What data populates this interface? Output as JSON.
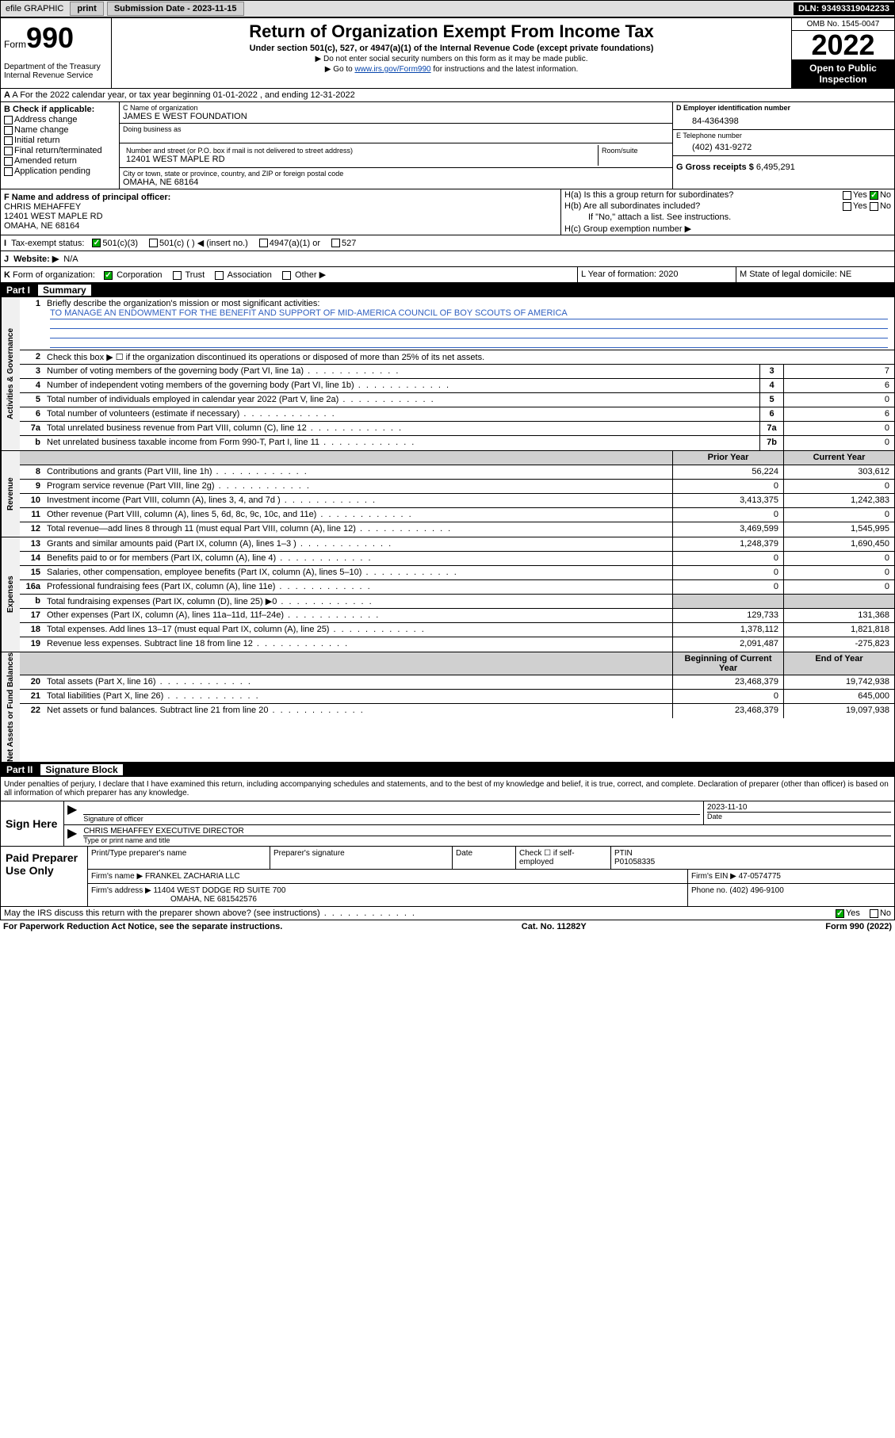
{
  "toolbar": {
    "efile": "efile GRAPHIC",
    "print": "print",
    "subm_label": "Submission Date - 2023-11-15",
    "dln": "DLN: 93493319042233"
  },
  "header": {
    "form_word": "Form",
    "form_num": "990",
    "dept": "Department of the Treasury\nInternal Revenue Service",
    "title": "Return of Organization Exempt From Income Tax",
    "sub": "Under section 501(c), 527, or 4947(a)(1) of the Internal Revenue Code (except private foundations)",
    "note1": "▶ Do not enter social security numbers on this form as it may be made public.",
    "note2_pre": "▶ Go to ",
    "note2_link": "www.irs.gov/Form990",
    "note2_post": " for instructions and the latest information.",
    "omb": "OMB No. 1545-0047",
    "year": "2022",
    "open_pub": "Open to Public Inspection"
  },
  "row_a": "A For the 2022 calendar year, or tax year beginning 01-01-2022   , and ending 12-31-2022",
  "col_b": {
    "hdr": "B Check if applicable:",
    "items": [
      "Address change",
      "Name change",
      "Initial return",
      "Final return/terminated",
      "Amended return",
      "Application pending"
    ]
  },
  "col_c": {
    "name_lbl": "C Name of organization",
    "name": "JAMES E WEST FOUNDATION",
    "dba_lbl": "Doing business as",
    "addr_lbl": "Number and street (or P.O. box if mail is not delivered to street address)",
    "room_lbl": "Room/suite",
    "addr": "12401 WEST MAPLE RD",
    "city_lbl": "City or town, state or province, country, and ZIP or foreign postal code",
    "city": "OMAHA, NE  68164",
    "f_lbl": "F Name and address of principal officer:",
    "f_name": "CHRIS MEHAFFEY",
    "f_addr": "12401 WEST MAPLE RD",
    "f_city": "OMAHA, NE  68164"
  },
  "col_de": {
    "d_lbl": "D Employer identification number",
    "d_val": "84-4364398",
    "e_lbl": "E Telephone number",
    "e_val": "(402) 431-9272",
    "g_lbl": "G Gross receipts $",
    "g_val": "6,495,291"
  },
  "h_block": {
    "ha": "H(a)  Is this a group return for subordinates?",
    "hb": "H(b)  Are all subordinates included?",
    "hb_note": "If \"No,\" attach a list. See instructions.",
    "hc": "H(c)  Group exemption number ▶",
    "yes": "Yes",
    "no": "No"
  },
  "row_i": {
    "lead": "I",
    "label": "Tax-exempt status:",
    "opts": [
      "501(c)(3)",
      "501(c) (  ) ◀ (insert no.)",
      "4947(a)(1) or",
      "527"
    ]
  },
  "row_j": {
    "lead": "J",
    "label": "Website: ▶",
    "val": "N/A"
  },
  "row_k": {
    "lead": "K",
    "label": "Form of organization:",
    "opts": [
      "Corporation",
      "Trust",
      "Association",
      "Other ▶"
    ]
  },
  "row_l": {
    "label": "L Year of formation: 2020"
  },
  "row_m": {
    "label": "M State of legal domicile: NE"
  },
  "part1_title": "Summary",
  "summary": {
    "side_labels": [
      "Activities & Governance",
      "Revenue",
      "Expenses",
      "Net Assets or Fund Balances"
    ],
    "line1_lbl": "Briefly describe the organization's mission or most significant activities:",
    "line1_text": "TO MANAGE AN ENDOWMENT FOR THE BENEFIT AND SUPPORT OF MID-AMERICA COUNCIL OF BOY SCOUTS OF AMERICA",
    "line2": "Check this box ▶ ☐  if the organization discontinued its operations or disposed of more than 25% of its net assets.",
    "rows_single": [
      {
        "n": "3",
        "d": "Number of voting members of the governing body (Part VI, line 1a)",
        "box": "3",
        "v": "7"
      },
      {
        "n": "4",
        "d": "Number of independent voting members of the governing body (Part VI, line 1b)",
        "box": "4",
        "v": "6"
      },
      {
        "n": "5",
        "d": "Total number of individuals employed in calendar year 2022 (Part V, line 2a)",
        "box": "5",
        "v": "0"
      },
      {
        "n": "6",
        "d": "Total number of volunteers (estimate if necessary)",
        "box": "6",
        "v": "6"
      },
      {
        "n": "7a",
        "d": "Total unrelated business revenue from Part VIII, column (C), line 12",
        "box": "7a",
        "v": "0"
      },
      {
        "n": "b",
        "d": "Net unrelated business taxable income from Form 990-T, Part I, line 11",
        "box": "7b",
        "v": "0"
      }
    ],
    "col_hdrs": {
      "prior": "Prior Year",
      "curr": "Current Year"
    },
    "rows_rev": [
      {
        "n": "8",
        "d": "Contributions and grants (Part VIII, line 1h)",
        "p": "56,224",
        "c": "303,612"
      },
      {
        "n": "9",
        "d": "Program service revenue (Part VIII, line 2g)",
        "p": "0",
        "c": "0"
      },
      {
        "n": "10",
        "d": "Investment income (Part VIII, column (A), lines 3, 4, and 7d )",
        "p": "3,413,375",
        "c": "1,242,383"
      },
      {
        "n": "11",
        "d": "Other revenue (Part VIII, column (A), lines 5, 6d, 8c, 9c, 10c, and 11e)",
        "p": "0",
        "c": "0"
      },
      {
        "n": "12",
        "d": "Total revenue—add lines 8 through 11 (must equal Part VIII, column (A), line 12)",
        "p": "3,469,599",
        "c": "1,545,995"
      }
    ],
    "rows_exp": [
      {
        "n": "13",
        "d": "Grants and similar amounts paid (Part IX, column (A), lines 1–3 )",
        "p": "1,248,379",
        "c": "1,690,450"
      },
      {
        "n": "14",
        "d": "Benefits paid to or for members (Part IX, column (A), line 4)",
        "p": "0",
        "c": "0"
      },
      {
        "n": "15",
        "d": "Salaries, other compensation, employee benefits (Part IX, column (A), lines 5–10)",
        "p": "0",
        "c": "0"
      },
      {
        "n": "16a",
        "d": "Professional fundraising fees (Part IX, column (A), line 11e)",
        "p": "0",
        "c": "0"
      },
      {
        "n": "b",
        "d": "Total fundraising expenses (Part IX, column (D), line 25) ▶0",
        "p": "",
        "c": "",
        "gray": true
      },
      {
        "n": "17",
        "d": "Other expenses (Part IX, column (A), lines 11a–11d, 11f–24e)",
        "p": "129,733",
        "c": "131,368"
      },
      {
        "n": "18",
        "d": "Total expenses. Add lines 13–17 (must equal Part IX, column (A), line 25)",
        "p": "1,378,112",
        "c": "1,821,818"
      },
      {
        "n": "19",
        "d": "Revenue less expenses. Subtract line 18 from line 12",
        "p": "2,091,487",
        "c": "-275,823"
      }
    ],
    "net_hdrs": {
      "beg": "Beginning of Current Year",
      "end": "End of Year"
    },
    "rows_net": [
      {
        "n": "20",
        "d": "Total assets (Part X, line 16)",
        "p": "23,468,379",
        "c": "19,742,938"
      },
      {
        "n": "21",
        "d": "Total liabilities (Part X, line 26)",
        "p": "0",
        "c": "645,000"
      },
      {
        "n": "22",
        "d": "Net assets or fund balances. Subtract line 21 from line 20",
        "p": "23,468,379",
        "c": "19,097,938"
      }
    ]
  },
  "part2_title": "Signature Block",
  "sig": {
    "note": "Under penalties of perjury, I declare that I have examined this return, including accompanying schedules and statements, and to the best of my knowledge and belief, it is true, correct, and complete. Declaration of preparer (other than officer) is based on all information of which preparer has any knowledge.",
    "sign_here": "Sign Here",
    "sig_officer_lbl": "Signature of officer",
    "date_lbl": "Date",
    "date_val": "2023-11-10",
    "name_title": "CHRIS MEHAFFEY  EXECUTIVE DIRECTOR",
    "name_title_lbl": "Type or print name and title"
  },
  "paid": {
    "title": "Paid Preparer Use Only",
    "hdr": [
      "Print/Type preparer's name",
      "Preparer's signature",
      "Date"
    ],
    "check_lbl": "Check ☐ if self-employed",
    "ptin_lbl": "PTIN",
    "ptin": "P01058335",
    "firm_name_lbl": "Firm's name    ▶",
    "firm_name": "FRANKEL ZACHARIA LLC",
    "firm_ein_lbl": "Firm's EIN ▶",
    "firm_ein": "47-0574775",
    "firm_addr_lbl": "Firm's address ▶",
    "firm_addr": "11404 WEST DODGE RD SUITE 700",
    "firm_city": "OMAHA, NE  681542576",
    "phone_lbl": "Phone no.",
    "phone": "(402) 496-9100"
  },
  "footer": {
    "discuss": "May the IRS discuss this return with the preparer shown above? (see instructions)",
    "yes": "Yes",
    "no": "No",
    "pra": "For Paperwork Reduction Act Notice, see the separate instructions.",
    "cat": "Cat. No. 11282Y",
    "form": "Form 990 (2022)"
  }
}
